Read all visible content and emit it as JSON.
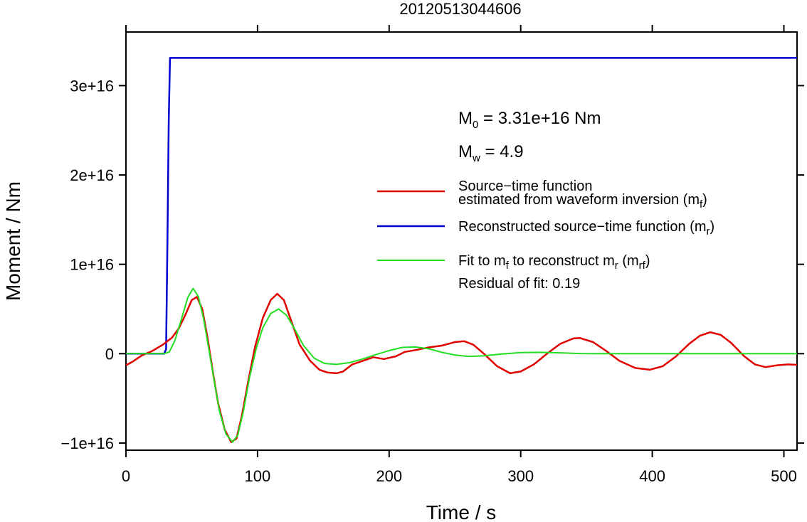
{
  "chart_data": {
    "type": "line",
    "title": "20120513044606",
    "xlabel": "Time / s",
    "ylabel": "Moment / Nm",
    "xlim": [
      0,
      510
    ],
    "ylim": [
      -1.08e+16,
      3.6e+16
    ],
    "x_ticks": [
      0,
      100,
      200,
      300,
      400,
      500
    ],
    "x_tick_labels": [
      "0",
      "100",
      "200",
      "300",
      "400",
      "500"
    ],
    "y_ticks": [
      -1e+16,
      0,
      1e+16,
      2e+16,
      3e+16
    ],
    "y_tick_labels": [
      "−1e+16",
      "0",
      "1e+16",
      "2e+16",
      "3e+16"
    ],
    "grid": false,
    "legend_position": "right-middle",
    "annotations": {
      "m0_label": "M",
      "m0_sub": "0",
      "m0_value": " = 3.31e+16 Nm",
      "mw_label": "M",
      "mw_sub": "w",
      "mw_value": " = 4.9",
      "residual": "Residual of fit: 0.19"
    },
    "legend": [
      {
        "color": "#e00000",
        "line1": "Source−time function",
        "line2": "estimated from waveform inversion (m",
        "sub": "f",
        "tail": ")"
      },
      {
        "color": "#0000d0",
        "line1": "Reconstructed source−time function (m",
        "sub": "r",
        "tail": ")"
      },
      {
        "color": "#22dd22",
        "line1": "Fit to m",
        "sub1": "f",
        "mid": " to reconstruct m",
        "sub2": "r",
        "mid2": " (m",
        "sub3": "rf",
        "tail": ")"
      }
    ],
    "series": [
      {
        "color": "#0000d0",
        "points": [
          [
            0,
            0
          ],
          [
            29,
            0
          ],
          [
            30.5,
            500000000000000.0
          ],
          [
            31.5,
            1.2e+16
          ],
          [
            32.5,
            2.6e+16
          ],
          [
            33.5,
            3.31e+16
          ],
          [
            510,
            3.31e+16
          ]
        ]
      },
      {
        "color": "#e00000",
        "points": [
          [
            0,
            -1300000000000000.0
          ],
          [
            5,
            -900000000000000.0
          ],
          [
            12,
            -200000000000000.0
          ],
          [
            20,
            300000000000000.0
          ],
          [
            28,
            1000000000000000.0
          ],
          [
            35,
            1800000000000000.0
          ],
          [
            40,
            2800000000000000.0
          ],
          [
            45,
            4300000000000000.0
          ],
          [
            50,
            6000000000000000.0
          ],
          [
            54,
            6350000000000000.0
          ],
          [
            58,
            5000000000000000.0
          ],
          [
            62,
            1800000000000000.0
          ],
          [
            66,
            -2000000000000000.0
          ],
          [
            70,
            -5500000000000000.0
          ],
          [
            75,
            -8500000000000000.0
          ],
          [
            80,
            -9900000000000000.0
          ],
          [
            84,
            -9500000000000000.0
          ],
          [
            88,
            -7000000000000000.0
          ],
          [
            93,
            -3000000000000000.0
          ],
          [
            98,
            700000000000000.0
          ],
          [
            104,
            4000000000000000.0
          ],
          [
            110,
            6000000000000000.0
          ],
          [
            115,
            6700000000000000.0
          ],
          [
            120,
            6000000000000000.0
          ],
          [
            126,
            3500000000000000.0
          ],
          [
            132,
            1000000000000000.0
          ],
          [
            140,
            -800000000000000.0
          ],
          [
            147,
            -1800000000000000.0
          ],
          [
            153,
            -2100000000000000.0
          ],
          [
            160,
            -2200000000000000.0
          ],
          [
            165,
            -2000000000000000.0
          ],
          [
            172,
            -1200000000000000.0
          ],
          [
            180,
            -800000000000000.0
          ],
          [
            188,
            -400000000000000.0
          ],
          [
            196,
            -600000000000000.0
          ],
          [
            205,
            -300000000000000.0
          ],
          [
            212,
            200000000000000.0
          ],
          [
            220,
            400000000000000.0
          ],
          [
            230,
            700000000000000.0
          ],
          [
            240,
            900000000000000.0
          ],
          [
            250,
            1300000000000000.0
          ],
          [
            257,
            1400000000000000.0
          ],
          [
            264,
            1000000000000000.0
          ],
          [
            272,
            0.0
          ],
          [
            282,
            -1400000000000000.0
          ],
          [
            292,
            -2200000000000000.0
          ],
          [
            300,
            -2000000000000000.0
          ],
          [
            310,
            -1200000000000000.0
          ],
          [
            320,
            0.0
          ],
          [
            330,
            1100000000000000.0
          ],
          [
            340,
            1700000000000000.0
          ],
          [
            345,
            1750000000000000.0
          ],
          [
            355,
            1300000000000000.0
          ],
          [
            365,
            300000000000000.0
          ],
          [
            375,
            -800000000000000.0
          ],
          [
            387,
            -1600000000000000.0
          ],
          [
            398,
            -1800000000000000.0
          ],
          [
            408,
            -1400000000000000.0
          ],
          [
            418,
            -300000000000000.0
          ],
          [
            428,
            1100000000000000.0
          ],
          [
            436,
            2000000000000000.0
          ],
          [
            444,
            2400000000000000.0
          ],
          [
            452,
            2100000000000000.0
          ],
          [
            460,
            1200000000000000.0
          ],
          [
            470,
            -300000000000000.0
          ],
          [
            478,
            -1200000000000000.0
          ],
          [
            486,
            -1500000000000000.0
          ],
          [
            495,
            -1300000000000000.0
          ],
          [
            503,
            -1200000000000000.0
          ],
          [
            510,
            -1250000000000000.0
          ]
        ]
      },
      {
        "color": "#22dd22",
        "points": [
          [
            0,
            0
          ],
          [
            29,
            0
          ],
          [
            33,
            200000000000000.0
          ],
          [
            37,
            1400000000000000.0
          ],
          [
            42,
            3800000000000000.0
          ],
          [
            47,
            6300000000000000.0
          ],
          [
            51,
            7300000000000000.0
          ],
          [
            55,
            6400000000000000.0
          ],
          [
            59,
            3900000000000000.0
          ],
          [
            63,
            500000000000000.0
          ],
          [
            67,
            -3000000000000000.0
          ],
          [
            71,
            -6400000000000000.0
          ],
          [
            76,
            -9000000000000000.0
          ],
          [
            81,
            -9900000000000000.0
          ],
          [
            85,
            -9100000000000000.0
          ],
          [
            89,
            -6600000000000000.0
          ],
          [
            94,
            -2600000000000000.0
          ],
          [
            99,
            600000000000000.0
          ],
          [
            104,
            2900000000000000.0
          ],
          [
            110,
            4500000000000000.0
          ],
          [
            116,
            5000000000000000.0
          ],
          [
            122,
            4300000000000000.0
          ],
          [
            128,
            2800000000000000.0
          ],
          [
            135,
            900000000000000.0
          ],
          [
            143,
            -500000000000000.0
          ],
          [
            151,
            -1100000000000000.0
          ],
          [
            160,
            -1200000000000000.0
          ],
          [
            170,
            -1000000000000000.0
          ],
          [
            180,
            -600000000000000.0
          ],
          [
            190,
            -100000000000000.0
          ],
          [
            200,
            350000000000000.0
          ],
          [
            210,
            700000000000000.0
          ],
          [
            220,
            750000000000000.0
          ],
          [
            230,
            550000000000000.0
          ],
          [
            240,
            150000000000000.0
          ],
          [
            250,
            -150000000000000.0
          ],
          [
            260,
            -300000000000000.0
          ],
          [
            272,
            -250000000000000.0
          ],
          [
            285,
            -50000000000000.0
          ],
          [
            300,
            120000000000000.0
          ],
          [
            315,
            150000000000000.0
          ],
          [
            330,
            100000000000000.0
          ],
          [
            345,
            20000000000000.0
          ],
          [
            360,
            0.0
          ],
          [
            380,
            0.0
          ],
          [
            400,
            0.0
          ],
          [
            440,
            0.0
          ],
          [
            480,
            0.0
          ],
          [
            510,
            0.0
          ]
        ]
      }
    ]
  }
}
